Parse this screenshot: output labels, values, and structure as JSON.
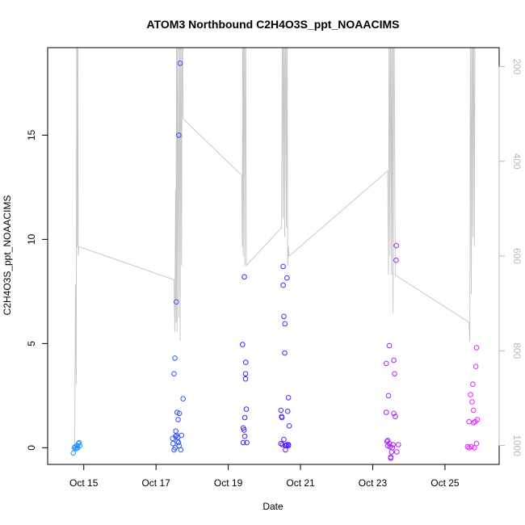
{
  "chart_data": {
    "type": "scatter",
    "title": "ATOM3 Northbound C2H4O3S_ppt_NOAACIMS",
    "xlabel": "Date",
    "ylabel": "C2H4O3S_ppt_NOAACIMS",
    "xlim": [
      "2017-10-14 00:00",
      "2017-10-26 12:00"
    ],
    "ylim": [
      -0.8,
      19.2
    ],
    "y2lim": [
      1040,
      160
    ],
    "x_ticks": [
      {
        "date": "2017-10-15",
        "label": "Oct 15"
      },
      {
        "date": "2017-10-17",
        "label": "Oct 17"
      },
      {
        "date": "2017-10-19",
        "label": "Oct 19"
      },
      {
        "date": "2017-10-21",
        "label": "Oct 21"
      },
      {
        "date": "2017-10-23",
        "label": "Oct 23"
      },
      {
        "date": "2017-10-25",
        "label": "Oct 25"
      }
    ],
    "y_ticks": [
      {
        "value": 0,
        "label": "0"
      },
      {
        "value": 5,
        "label": "5"
      },
      {
        "value": 10,
        "label": "10"
      },
      {
        "value": 15,
        "label": "15"
      }
    ],
    "y2_ticks": [
      {
        "value": 200,
        "label": "200"
      },
      {
        "value": 400,
        "label": "400"
      },
      {
        "value": 600,
        "label": "600"
      },
      {
        "value": 800,
        "label": "800"
      },
      {
        "value": 1000,
        "label": "1000"
      }
    ],
    "colors": {
      "pressure_line": "#c8c8c8",
      "right_axis": "#b8b8b8",
      "point_start": "#1ea8ff",
      "point_mid": "#3a20ff",
      "point_end": "#ff20ff"
    },
    "pressure_series": [
      [
        "2017-10-14 18:00",
        1000
      ],
      [
        "2017-10-14 18:30",
        660
      ],
      [
        "2017-10-14 19:00",
        870
      ],
      [
        "2017-10-14 19:20",
        20
      ],
      [
        "2017-10-14 19:40",
        580
      ],
      [
        "2017-10-14 20:00",
        20
      ],
      [
        "2017-10-14 20:20",
        600
      ],
      [
        "2017-10-14 20:40",
        580
      ],
      [
        "2017-10-17 12:00",
        650
      ],
      [
        "2017-10-17 12:30",
        760
      ],
      [
        "2017-10-17 13:00",
        460
      ],
      [
        "2017-10-17 13:20",
        740
      ],
      [
        "2017-10-17 13:40",
        20
      ],
      [
        "2017-10-17 14:00",
        760
      ],
      [
        "2017-10-17 14:30",
        20
      ],
      [
        "2017-10-17 15:00",
        730
      ],
      [
        "2017-10-17 15:40",
        20
      ],
      [
        "2017-10-17 16:00",
        780
      ],
      [
        "2017-10-17 16:30",
        20
      ],
      [
        "2017-10-17 17:00",
        620
      ],
      [
        "2017-10-17 17:30",
        20
      ],
      [
        "2017-10-17 18:00",
        310
      ],
      [
        "2017-10-19 09:00",
        430
      ],
      [
        "2017-10-19 09:20",
        580
      ],
      [
        "2017-10-19 09:40",
        20
      ],
      [
        "2017-10-19 10:00",
        600
      ],
      [
        "2017-10-19 10:30",
        20
      ],
      [
        "2017-10-19 11:00",
        620
      ],
      [
        "2017-10-19 11:30",
        20
      ],
      [
        "2017-10-19 12:00",
        620
      ],
      [
        "2017-10-20 11:30",
        540
      ],
      [
        "2017-10-20 12:00",
        20
      ],
      [
        "2017-10-20 12:30",
        520
      ],
      [
        "2017-10-20 13:00",
        20
      ],
      [
        "2017-10-20 13:30",
        560
      ],
      [
        "2017-10-20 14:00",
        20
      ],
      [
        "2017-10-20 14:40",
        540
      ],
      [
        "2017-10-20 15:00",
        20
      ],
      [
        "2017-10-20 15:30",
        620
      ],
      [
        "2017-10-20 16:00",
        580
      ],
      [
        "2017-10-20 16:30",
        600
      ],
      [
        "2017-10-23 10:00",
        420
      ],
      [
        "2017-10-23 10:30",
        640
      ],
      [
        "2017-10-23 11:00",
        20
      ],
      [
        "2017-10-23 11:30",
        600
      ],
      [
        "2017-10-23 12:00",
        20
      ],
      [
        "2017-10-23 12:30",
        640
      ],
      [
        "2017-10-23 13:00",
        20
      ],
      [
        "2017-10-23 13:30",
        720
      ],
      [
        "2017-10-23 14:00",
        20
      ],
      [
        "2017-10-23 15:00",
        640
      ],
      [
        "2017-10-25 16:00",
        740
      ],
      [
        "2017-10-25 16:30",
        780
      ],
      [
        "2017-10-25 17:00",
        20
      ],
      [
        "2017-10-25 17:30",
        680
      ],
      [
        "2017-10-25 18:00",
        20
      ],
      [
        "2017-10-25 18:30",
        560
      ],
      [
        "2017-10-25 19:00",
        20
      ],
      [
        "2017-10-25 19:30",
        580
      ],
      [
        "2017-10-25 20:00",
        20
      ]
    ],
    "points": [
      [
        "2017-10-14 17:00",
        -0.25
      ],
      [
        "2017-10-14 17:40",
        0.0
      ],
      [
        "2017-10-14 18:10",
        0.05
      ],
      [
        "2017-10-14 18:40",
        -0.05
      ],
      [
        "2017-10-14 19:10",
        0.0
      ],
      [
        "2017-10-14 19:40",
        0.1
      ],
      [
        "2017-10-14 20:00",
        0.0
      ],
      [
        "2017-10-14 20:30",
        0.2
      ],
      [
        "2017-10-14 21:00",
        0.25
      ],
      [
        "2017-10-14 21:20",
        0.1
      ],
      [
        "2017-10-17 11:00",
        0.45
      ],
      [
        "2017-10-17 11:20",
        0.2
      ],
      [
        "2017-10-17 12:00",
        3.55
      ],
      [
        "2017-10-17 12:30",
        4.3
      ],
      [
        "2017-10-17 12:40",
        0.0
      ],
      [
        "2017-10-17 13:10",
        0.8
      ],
      [
        "2017-10-17 13:30",
        7.0
      ],
      [
        "2017-10-17 13:40",
        0.6
      ],
      [
        "2017-10-17 14:00",
        1.7
      ],
      [
        "2017-10-17 14:10",
        0.3
      ],
      [
        "2017-10-17 14:30",
        0.5
      ],
      [
        "2017-10-17 14:40",
        1.35
      ],
      [
        "2017-10-17 15:00",
        0.25
      ],
      [
        "2017-10-17 15:10",
        15.0
      ],
      [
        "2017-10-17 15:20",
        0.1
      ],
      [
        "2017-10-17 15:30",
        1.65
      ],
      [
        "2017-10-17 16:00",
        18.45
      ],
      [
        "2017-10-17 16:30",
        -0.1
      ],
      [
        "2017-10-17 17:00",
        0.6
      ],
      [
        "2017-10-17 18:00",
        2.35
      ],
      [
        "2017-10-17 12:00",
        -0.1
      ],
      [
        "2017-10-17 13:00",
        0.55
      ],
      [
        "2017-10-19 09:30",
        4.95
      ],
      [
        "2017-10-19 10:00",
        0.95
      ],
      [
        "2017-10-19 10:00",
        0.25
      ],
      [
        "2017-10-19 10:30",
        0.85
      ],
      [
        "2017-10-19 10:40",
        8.2
      ],
      [
        "2017-10-19 11:00",
        0.55
      ],
      [
        "2017-10-19 11:00",
        1.45
      ],
      [
        "2017-10-19 11:30",
        3.55
      ],
      [
        "2017-10-19 11:30",
        3.3
      ],
      [
        "2017-10-19 11:40",
        4.1
      ],
      [
        "2017-10-19 12:00",
        1.85
      ],
      [
        "2017-10-19 12:20",
        0.25
      ],
      [
        "2017-10-20 11:00",
        0.2
      ],
      [
        "2017-10-20 11:00",
        1.8
      ],
      [
        "2017-10-20 11:30",
        1.5
      ],
      [
        "2017-10-20 11:40",
        1.45
      ],
      [
        "2017-10-20 12:00",
        0.15
      ],
      [
        "2017-10-20 12:30",
        8.7
      ],
      [
        "2017-10-20 12:30",
        7.8
      ],
      [
        "2017-10-20 13:00",
        6.3
      ],
      [
        "2017-10-20 13:00",
        0.4
      ],
      [
        "2017-10-20 13:30",
        4.55
      ],
      [
        "2017-10-20 13:40",
        5.95
      ],
      [
        "2017-10-20 14:00",
        0.1
      ],
      [
        "2017-10-20 14:00",
        -0.1
      ],
      [
        "2017-10-20 14:30",
        0.1
      ],
      [
        "2017-10-20 15:00",
        0.15
      ],
      [
        "2017-10-20 15:00",
        8.15
      ],
      [
        "2017-10-20 15:30",
        1.75
      ],
      [
        "2017-10-20 16:00",
        0.15
      ],
      [
        "2017-10-20 16:00",
        2.4
      ],
      [
        "2017-10-20 16:30",
        1.05
      ],
      [
        "2017-10-20 16:00",
        0.1
      ],
      [
        "2017-10-23 09:00",
        4.05
      ],
      [
        "2017-10-23 09:00",
        1.7
      ],
      [
        "2017-10-23 09:30",
        0.3
      ],
      [
        "2017-10-23 10:00",
        0.35
      ],
      [
        "2017-10-23 10:00",
        0.1
      ],
      [
        "2017-10-23 10:30",
        2.5
      ],
      [
        "2017-10-23 11:00",
        4.9
      ],
      [
        "2017-10-23 11:00",
        0.2
      ],
      [
        "2017-10-23 11:30",
        0.05
      ],
      [
        "2017-10-23 12:00",
        -0.45
      ],
      [
        "2017-10-23 12:00",
        -0.5
      ],
      [
        "2017-10-23 12:30",
        -0.2
      ],
      [
        "2017-10-23 13:00",
        0.0
      ],
      [
        "2017-10-23 13:30",
        0.15
      ],
      [
        "2017-10-23 14:00",
        4.2
      ],
      [
        "2017-10-23 14:00",
        1.65
      ],
      [
        "2017-10-23 14:30",
        3.55
      ],
      [
        "2017-10-23 15:00",
        1.5
      ],
      [
        "2017-10-23 15:30",
        9.0
      ],
      [
        "2017-10-23 15:40",
        9.7
      ],
      [
        "2017-10-23 16:00",
        -0.2
      ],
      [
        "2017-10-23 17:00",
        0.15
      ],
      [
        "2017-10-25 15:00",
        0.05
      ],
      [
        "2017-10-25 16:00",
        0.0
      ],
      [
        "2017-10-25 16:00",
        1.25
      ],
      [
        "2017-10-25 17:00",
        2.55
      ],
      [
        "2017-10-25 17:30",
        0.05
      ],
      [
        "2017-10-25 18:00",
        2.2
      ],
      [
        "2017-10-25 18:30",
        3.05
      ],
      [
        "2017-10-25 19:00",
        1.8
      ],
      [
        "2017-10-25 19:00",
        1.2
      ],
      [
        "2017-10-25 19:30",
        0.0
      ],
      [
        "2017-10-25 20:00",
        1.25
      ],
      [
        "2017-10-25 20:30",
        3.9
      ],
      [
        "2017-10-25 21:00",
        0.2
      ],
      [
        "2017-10-25 21:00",
        4.8
      ],
      [
        "2017-10-25 21:30",
        1.35
      ]
    ]
  }
}
